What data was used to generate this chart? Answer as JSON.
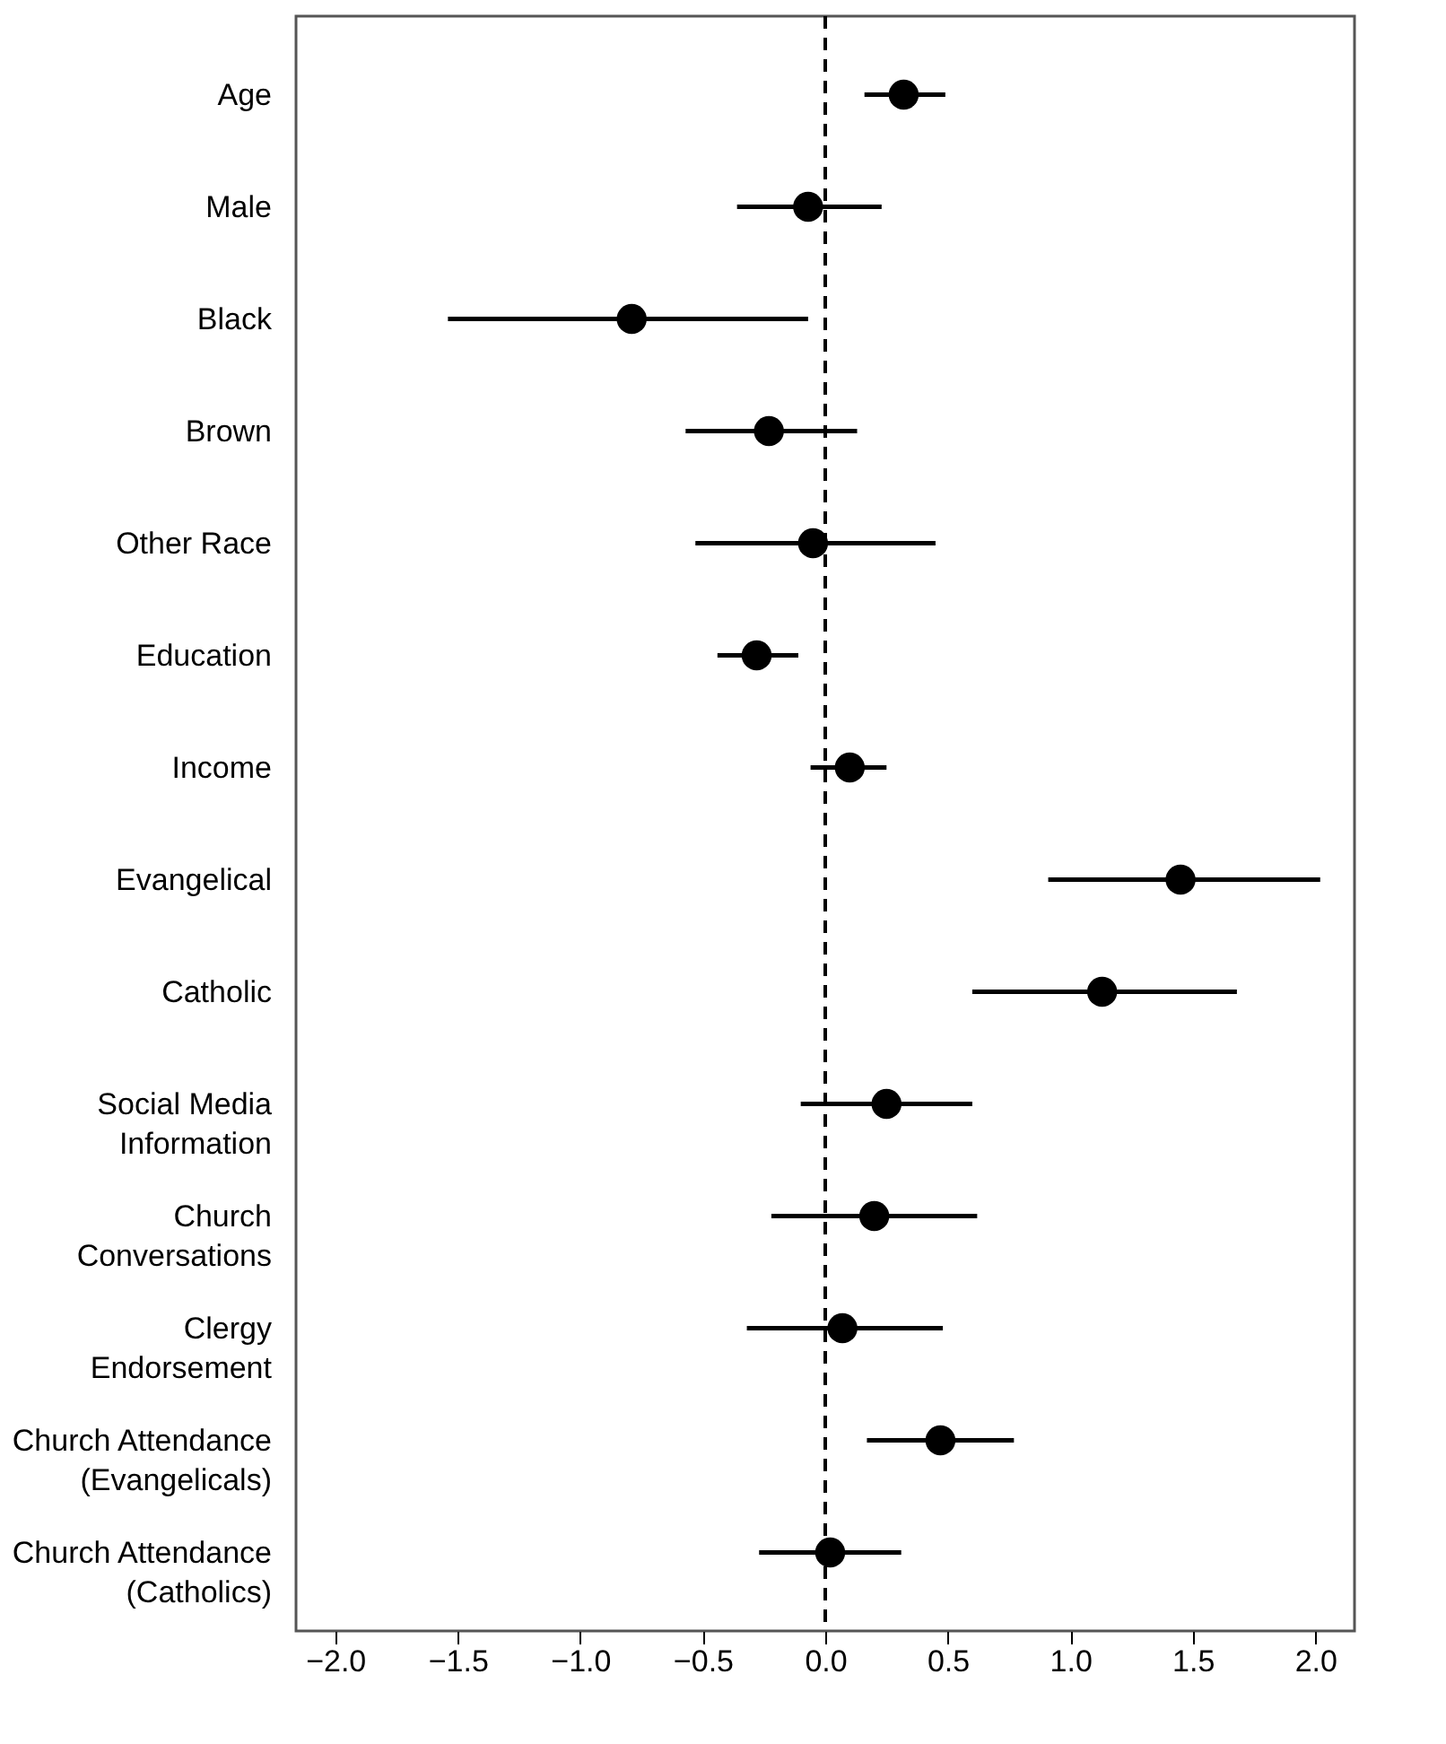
{
  "chart_data": {
    "type": "scatter",
    "categories": [
      "Age",
      "Male",
      "Black",
      "Brown",
      "Other Race",
      "Education",
      "Income",
      "Evangelical",
      "Catholic",
      "Social Media\nInformation",
      "Church\nConversations",
      "Clergy\nEndorsement",
      "Church Attendance\n(Evangelicals)",
      "Church Attendance\n(Catholics)"
    ],
    "orientation": "horizontal",
    "values": [
      0.32,
      -0.07,
      -0.79,
      -0.23,
      -0.05,
      -0.28,
      0.1,
      1.45,
      1.13,
      0.25,
      0.2,
      0.07,
      0.47,
      0.02
    ],
    "errors": [
      [
        0.16,
        0.49
      ],
      [
        -0.36,
        0.23
      ],
      [
        -1.54,
        -0.07
      ],
      [
        -0.57,
        0.13
      ],
      [
        -0.53,
        0.45
      ],
      [
        -0.44,
        -0.11
      ],
      [
        -0.06,
        0.25
      ],
      [
        0.91,
        2.02
      ],
      [
        0.6,
        1.68
      ],
      [
        -0.1,
        0.6
      ],
      [
        -0.22,
        0.62
      ],
      [
        -0.32,
        0.48
      ],
      [
        0.17,
        0.77
      ],
      [
        -0.27,
        0.31
      ]
    ],
    "color": "#000000",
    "marker": "circle",
    "xlim": [
      -2.16,
      2.16
    ],
    "xticks": [
      {
        "value": -2,
        "label": "−2.0"
      },
      -1.5,
      {
        "value": -1,
        "label": "−1.0"
      },
      -0.5,
      {
        "value": 0,
        "label": "0.0"
      },
      0.5,
      {
        "value": 1,
        "label": "1.0"
      },
      1.5,
      {
        "value": 2,
        "label": "2.0"
      }
    ],
    "ref_lines": [
      {
        "axis": "x",
        "value": 0,
        "line_style": "dashed",
        "color": "#000000"
      }
    ]
  }
}
